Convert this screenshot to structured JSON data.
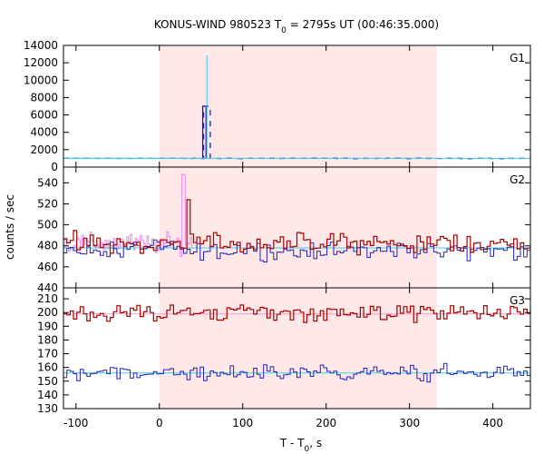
{
  "chart_data": {
    "type": "line",
    "title": {
      "main": "KONUS-WIND 980523 T",
      "sub": "0",
      "rest": " = 2795s UT (00:46:35.000)"
    },
    "xlabel": {
      "main": "T - T",
      "sub": "0",
      "rest": ", s"
    },
    "ylabel": "counts / sec",
    "xlim": [
      -115,
      445
    ],
    "x_ticks": [
      -100,
      0,
      100,
      200,
      300,
      400
    ],
    "x_tick_labels": [
      "-100",
      "0",
      "100",
      "200",
      "300",
      "400"
    ],
    "highlight_interval": [
      0,
      333
    ],
    "colors": {
      "highlight": "#ffe8e8",
      "g1_fine": "#40c8e8",
      "g1_coarse": "#1a1acc",
      "g2_fine": "#ee88ee",
      "g2_red": "#aa0000",
      "g2_blue": "#2222bb",
      "g2_bg": "#40d0e0",
      "g3_red": "#aa0000",
      "g3_blue": "#2222bb",
      "g3_bg_red": "#ff99cc",
      "g3_bg_blue": "#40d0e0"
    },
    "panels": [
      {
        "label": "G1",
        "ylim": [
          0,
          14000
        ],
        "y_ticks": [
          0,
          2000,
          4000,
          6000,
          8000,
          10000,
          12000,
          14000
        ],
        "y_tick_labels": [
          "0",
          "2000",
          "4000",
          "6000",
          "8000",
          "10000",
          "12000",
          "14000"
        ],
        "baseline": 1000,
        "coarse_bin": 4,
        "peak_coarse": {
          "x_start": 52,
          "x_end": 56,
          "value": 7000
        },
        "peak_fine": {
          "x_start": 56,
          "x_end": 58,
          "value": 12800
        },
        "x_end_fine": 58
      },
      {
        "label": "G2",
        "ylim": [
          440,
          555
        ],
        "y_ticks": [
          440,
          460,
          480,
          500,
          520,
          540
        ],
        "y_tick_labels": [
          "440",
          "460",
          "480",
          "500",
          "520",
          "540"
        ],
        "red_mean": 482,
        "red_spread": 14,
        "blue_mean": 476,
        "blue_spread": 12,
        "bg_level": 478,
        "bin": 4,
        "fine_peak": {
          "x_start": 26,
          "x_end": 30,
          "value": 548
        },
        "red_peak": {
          "x_start": 30,
          "x_end": 36,
          "value": 524
        }
      },
      {
        "label": "G3",
        "ylim": [
          130,
          218
        ],
        "y_ticks": [
          130,
          140,
          150,
          160,
          170,
          180,
          190,
          200,
          210
        ],
        "y_tick_labels": [
          "130",
          "140",
          "150",
          "160",
          "170",
          "180",
          "190",
          "200",
          "210"
        ],
        "red_mean": 200,
        "red_spread": 9,
        "blue_mean": 156,
        "blue_spread": 8,
        "bg_red": 199,
        "bg_blue": 156,
        "bin": 4
      }
    ]
  }
}
